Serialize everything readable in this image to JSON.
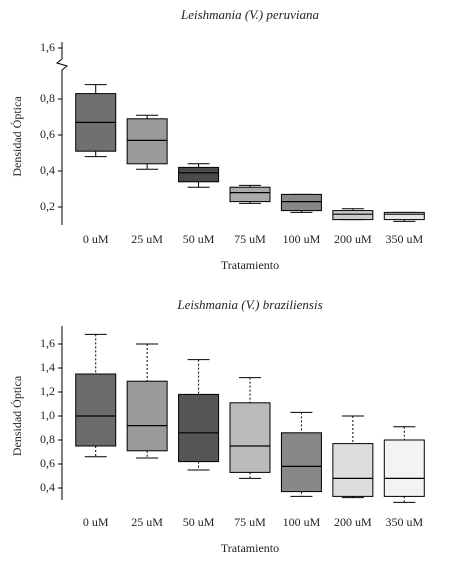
{
  "chart_data": [
    {
      "type": "box",
      "title": "Leishmania (V.) peruviana",
      "ylabel": "Densidad Óptica",
      "xlabel": "Tratamiento",
      "categories": [
        "0 uM",
        "25 uM",
        "50 uM",
        "75 uM",
        "100 uM",
        "200 uM",
        "350 uM"
      ],
      "whisker_low": [
        0.48,
        0.41,
        0.31,
        0.22,
        0.17,
        0.13,
        0.12
      ],
      "q1": [
        0.51,
        0.44,
        0.34,
        0.23,
        0.18,
        0.13,
        0.13
      ],
      "median": [
        0.67,
        0.57,
        0.39,
        0.28,
        0.23,
        0.16,
        0.16
      ],
      "q3": [
        0.83,
        0.69,
        0.42,
        0.31,
        0.27,
        0.18,
        0.17
      ],
      "whisker_high": [
        0.88,
        0.71,
        0.44,
        0.32,
        0.27,
        0.19,
        0.17
      ],
      "colors": [
        "#707070",
        "#9a9a9a",
        "#4a4a4a",
        "#ababab",
        "#888888",
        "#cccccc",
        "#e8e8e8"
      ],
      "whisker_style": "solid",
      "axis_break": true,
      "ylim": [
        0.1,
        1.6
      ],
      "yticks": [
        {
          "value": 0.2,
          "label": "0,2"
        },
        {
          "value": 0.4,
          "label": "0,4"
        },
        {
          "value": 0.6,
          "label": "0,6"
        },
        {
          "value": 0.8,
          "label": "0,8"
        },
        {
          "value": 1.6,
          "label": "1,6"
        }
      ]
    },
    {
      "type": "box",
      "title": "Leishmania (V.) braziliensis",
      "ylabel": "Densidad Óptica",
      "xlabel": "Tratamiento",
      "categories": [
        "0 uM",
        "25 uM",
        "50 uM",
        "75 uM",
        "100 uM",
        "200 uM",
        "350 uM"
      ],
      "whisker_low": [
        0.66,
        0.65,
        0.55,
        0.48,
        0.33,
        0.32,
        0.28
      ],
      "q1": [
        0.75,
        0.71,
        0.62,
        0.53,
        0.37,
        0.33,
        0.33
      ],
      "median": [
        1.0,
        0.92,
        0.86,
        0.75,
        0.58,
        0.48,
        0.48
      ],
      "q3": [
        1.35,
        1.29,
        1.18,
        1.11,
        0.86,
        0.77,
        0.8
      ],
      "whisker_high": [
        1.68,
        1.6,
        1.47,
        1.32,
        1.03,
        1.0,
        0.91
      ],
      "colors": [
        "#6b6b6b",
        "#9a9a9a",
        "#555555",
        "#bbbbbb",
        "#888888",
        "#dddddd",
        "#f3f3f3"
      ],
      "whisker_style": "dashed",
      "axis_break": false,
      "ylim": [
        0.3,
        1.7
      ],
      "yticks": [
        {
          "value": 0.4,
          "label": "0,4"
        },
        {
          "value": 0.6,
          "label": "0,6"
        },
        {
          "value": 0.8,
          "label": "0,8"
        },
        {
          "value": 1.0,
          "label": "1,0"
        },
        {
          "value": 1.2,
          "label": "1,2"
        },
        {
          "value": 1.4,
          "label": "1,4"
        },
        {
          "value": 1.6,
          "label": "1,6"
        }
      ]
    }
  ]
}
